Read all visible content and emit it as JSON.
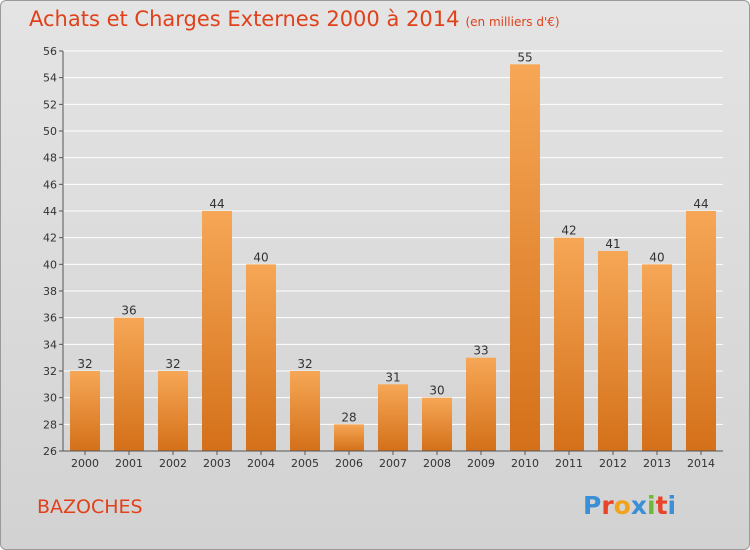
{
  "header": {
    "title": "Achats et Charges Externes 2000 à 2014",
    "subtitle": "(en milliers d'€)"
  },
  "footer": {
    "town": "BAZOCHES",
    "logo": "Proxiti"
  },
  "colors": {
    "bar_top": "#f6a756",
    "bar_bottom": "#d47019",
    "title": "#e0411a",
    "grid": "#ffffff"
  },
  "chart_data": {
    "type": "bar",
    "categories": [
      "2000",
      "2001",
      "2002",
      "2003",
      "2004",
      "2005",
      "2006",
      "2007",
      "2008",
      "2009",
      "2010",
      "2011",
      "2012",
      "2013",
      "2014"
    ],
    "values": [
      32,
      36,
      32,
      44,
      40,
      32,
      28,
      31,
      30,
      33,
      55,
      42,
      41,
      40,
      44
    ],
    "title": "Achats et Charges Externes 2000 à 2014",
    "ylim": [
      26,
      56
    ],
    "yticks": [
      26,
      28,
      30,
      32,
      34,
      36,
      38,
      40,
      42,
      44,
      46,
      48,
      50,
      52,
      54,
      56
    ],
    "grid": "horizontal",
    "data_labels": true
  }
}
